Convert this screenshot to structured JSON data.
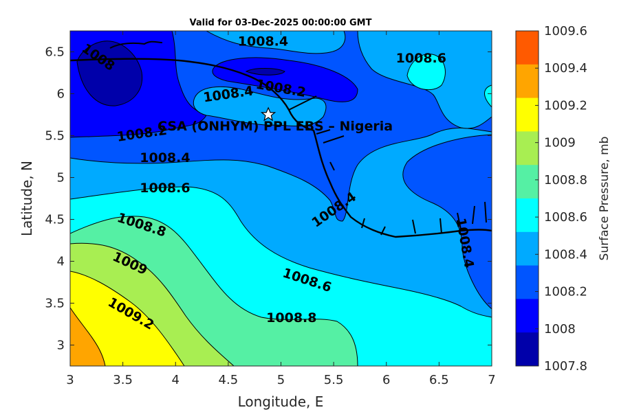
{
  "title": "Valid for 03-Dec-2025 00:00:00 GMT",
  "xaxis": {
    "label": "Longitude, E",
    "ticks": [
      "3",
      "3.5",
      "4",
      "4.5",
      "5",
      "5.5",
      "6",
      "6.5",
      "7"
    ]
  },
  "yaxis": {
    "label": "Latitude, N",
    "ticks": [
      "6.5",
      "6",
      "5.5",
      "5",
      "4.5",
      "4",
      "3.5",
      "3"
    ]
  },
  "site": {
    "label": "CSA (ONHYM) PPL EBS – Nigeria",
    "lon": 4.88,
    "lat": 5.75
  },
  "contour_labels": [
    {
      "text": "1008.4",
      "lon": 4.83,
      "lat": 6.63
    },
    {
      "text": "1008.6",
      "lon": 6.33,
      "lat": 6.43
    },
    {
      "text": "1008",
      "lon": 3.27,
      "lat": 6.44
    },
    {
      "text": "1008.4",
      "lon": 4.5,
      "lat": 6.0
    },
    {
      "text": "1008.2",
      "lon": 5.0,
      "lat": 6.07
    },
    {
      "text": "1008.2",
      "lon": 3.68,
      "lat": 5.53
    },
    {
      "text": "1008.4",
      "lon": 3.9,
      "lat": 5.24
    },
    {
      "text": "1008.6",
      "lon": 3.9,
      "lat": 4.88
    },
    {
      "text": "1008.4",
      "lon": 5.5,
      "lat": 4.62
    },
    {
      "text": "1008.4",
      "lon": 6.75,
      "lat": 4.22
    },
    {
      "text": "1008.8",
      "lon": 3.68,
      "lat": 4.44
    },
    {
      "text": "1009",
      "lon": 3.57,
      "lat": 3.98
    },
    {
      "text": "1008.6",
      "lon": 5.25,
      "lat": 3.78
    },
    {
      "text": "1009.2",
      "lon": 3.58,
      "lat": 3.38
    },
    {
      "text": "1008.8",
      "lon": 5.1,
      "lat": 3.33
    }
  ],
  "colorbar": {
    "label": "Surface Pressure, mb",
    "ticks": [
      "1009.6",
      "1009.4",
      "1009.2",
      "1009",
      "1008.8",
      "1008.6",
      "1008.4",
      "1008.2",
      "1008",
      "1007.8"
    ],
    "colors": [
      "#ff5a00",
      "#ffa500",
      "#ffff00",
      "#a8ee52",
      "#55f0a4",
      "#00ffff",
      "#00aaff",
      "#0055ff",
      "#0000ff",
      "#0000aa"
    ]
  },
  "chart_data": {
    "type": "heatmap",
    "title": "Valid for 03-Dec-2025 00:00:00 GMT",
    "xlabel": "Longitude, E",
    "ylabel": "Latitude, N",
    "xlim": [
      3,
      7
    ],
    "ylim": [
      2.75,
      6.75
    ],
    "clim": [
      1007.8,
      1009.6
    ],
    "contour_levels": [
      1007.8,
      1008.0,
      1008.2,
      1008.4,
      1008.6,
      1008.8,
      1009.0,
      1009.2,
      1009.4,
      1009.6
    ],
    "colorbar_label": "Surface Pressure, mb",
    "marker": {
      "name": "CSA (ONHYM) PPL EBS – Nigeria",
      "lon": 4.88,
      "lat": 5.75
    }
  }
}
